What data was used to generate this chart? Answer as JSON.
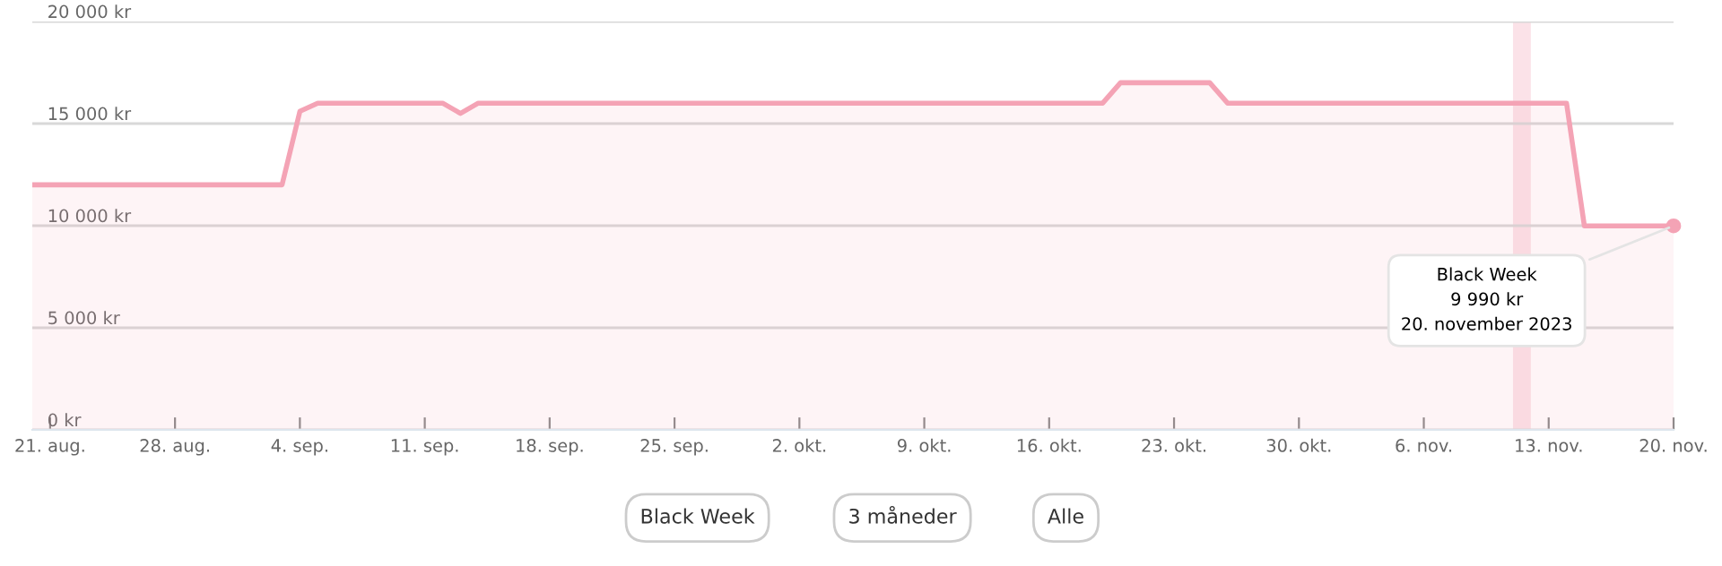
{
  "chart_data": {
    "type": "area",
    "color": "#f4a3b5",
    "x": [
      "2023-08-20",
      "2023-09-03",
      "2023-09-04",
      "2023-09-05",
      "2023-09-12",
      "2023-09-13",
      "2023-09-14",
      "2023-10-19",
      "2023-10-20",
      "2023-10-25",
      "2023-10-26",
      "2023-11-14",
      "2023-11-15",
      "2023-11-20"
    ],
    "values": [
      12000,
      12000,
      15600,
      16000,
      16000,
      15500,
      16000,
      16000,
      17000,
      17000,
      16000,
      16000,
      9990,
      9990
    ],
    "xlim": [
      "2023-08-20",
      "2023-11-20"
    ],
    "xticks": [
      {
        "value": "2023-08-21",
        "label": "21. aug."
      },
      {
        "value": "2023-08-28",
        "label": "28. aug."
      },
      {
        "value": "2023-09-04",
        "label": "4. sep."
      },
      {
        "value": "2023-09-11",
        "label": "11. sep."
      },
      {
        "value": "2023-09-18",
        "label": "18. sep."
      },
      {
        "value": "2023-09-25",
        "label": "25. sep."
      },
      {
        "value": "2023-10-02",
        "label": "2. okt."
      },
      {
        "value": "2023-10-09",
        "label": "9. okt."
      },
      {
        "value": "2023-10-16",
        "label": "16. okt."
      },
      {
        "value": "2023-10-23",
        "label": "23. okt."
      },
      {
        "value": "2023-10-30",
        "label": "30. okt."
      },
      {
        "value": "2023-11-06",
        "label": "6. nov."
      },
      {
        "value": "2023-11-13",
        "label": "13. nov."
      },
      {
        "value": "2023-11-20",
        "label": "20. nov."
      }
    ],
    "ylim": [
      0,
      20000
    ],
    "yticks": [
      {
        "value": 0,
        "label": "0 kr"
      },
      {
        "value": 5000,
        "label": "5 000 kr"
      },
      {
        "value": 10000,
        "label": "10 000 kr"
      },
      {
        "value": 15000,
        "label": "15 000 kr"
      },
      {
        "value": 20000,
        "label": "20 000 kr"
      }
    ],
    "grid": "y",
    "bands": [
      {
        "axis": "x",
        "from": "2023-11-11",
        "to": "2023-11-12",
        "color": "#fadbe2"
      }
    ],
    "annotations": [
      {
        "text": "Black Week\n9 990 kr\n20. november 2023",
        "x": "2023-11-20",
        "y": 9990
      },
      "Black Week",
      "3 måneder",
      "Alle"
    ]
  }
}
